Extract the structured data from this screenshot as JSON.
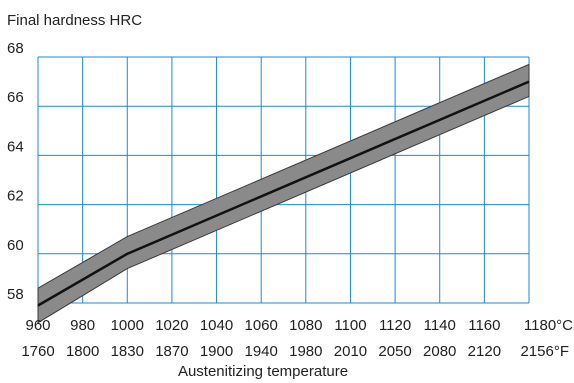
{
  "chart_data": {
    "type": "line",
    "title": "",
    "ylabel": "Final hardness HRC",
    "xlabel": "Austenitizing temperature",
    "x_range": [
      960,
      1180
    ],
    "ylim": [
      58,
      68
    ],
    "grid": true,
    "x_ticks_c": [
      "960",
      "980",
      "1000",
      "1020",
      "1040",
      "1060",
      "1080",
      "1100",
      "1120",
      "1140",
      "1160",
      "1180°C"
    ],
    "x_ticks_f": [
      "1760",
      "1800",
      "1830",
      "1870",
      "1900",
      "1940",
      "1980",
      "2010",
      "2050",
      "2080",
      "2120",
      "2156°F"
    ],
    "y_ticks": [
      "58",
      "60",
      "62",
      "64",
      "66",
      "68"
    ],
    "series": [
      {
        "x": [
          960,
          1000,
          1180
        ],
        "y": [
          57.9,
          60.0,
          67.0
        ]
      }
    ],
    "band": {
      "x": [
        960,
        1000,
        1180
      ],
      "upper": [
        58.6,
        60.7,
        67.7
      ],
      "lower": [
        57.2,
        59.4,
        66.4
      ]
    },
    "colors": {
      "grid": "#1e88d8",
      "band_fill": "#8a8a8a",
      "line": "#111111",
      "text": "#222222"
    }
  }
}
